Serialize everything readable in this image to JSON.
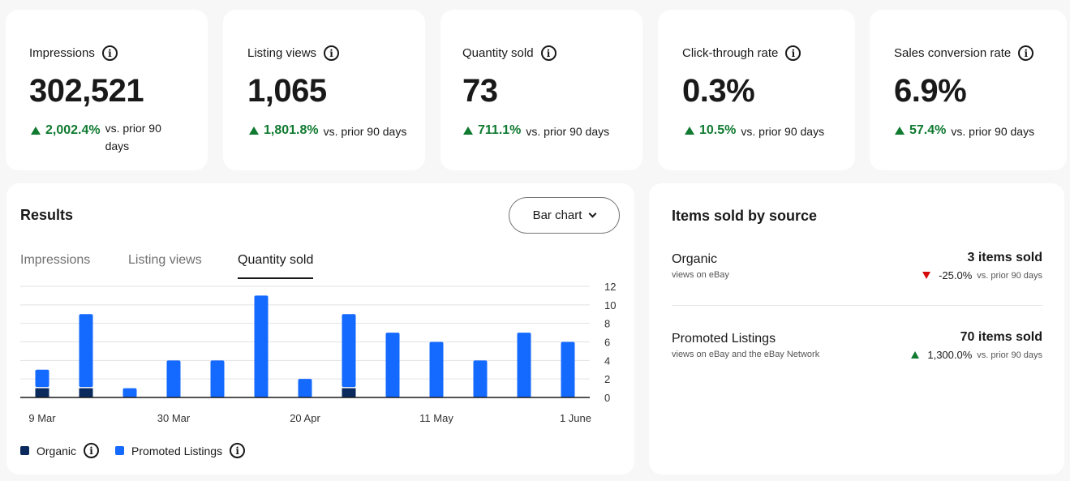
{
  "kpis": [
    {
      "label": "Impressions",
      "value": "302,521",
      "change": "2,002.4%",
      "vs": "vs. prior 90 days"
    },
    {
      "label": "Listing views",
      "value": "1,065",
      "change": "1,801.8%",
      "vs": "vs. prior 90 days"
    },
    {
      "label": "Quantity sold",
      "value": "73",
      "change": "711.1%",
      "vs": "vs. prior 90 days"
    },
    {
      "label": "Click-through rate",
      "value": "0.3%",
      "change": "10.5%",
      "vs": "vs. prior 90 days"
    },
    {
      "label": "Sales conversion rate",
      "value": "6.9%",
      "change": "57.4%",
      "vs": "vs. prior 90 days"
    }
  ],
  "results": {
    "title": "Results",
    "chart_type_button": "Bar chart",
    "tabs": [
      "Impressions",
      "Listing views",
      "Quantity sold"
    ],
    "active_tab": 2,
    "legend": [
      "Organic",
      "Promoted Listings"
    ]
  },
  "colors": {
    "organic": "#0a2a5e",
    "promoted": "#1469ff",
    "positive": "#0f7a30",
    "negative": "#d50b0b"
  },
  "chart_data": {
    "type": "bar",
    "stacked": true,
    "x_tick_labels": [
      "9 Mar",
      "30 Mar",
      "20 Apr",
      "11 May",
      "1 June"
    ],
    "series": [
      {
        "name": "Organic",
        "values": [
          1,
          1,
          0,
          0,
          0,
          0,
          0,
          1,
          0,
          0,
          0,
          0,
          0
        ]
      },
      {
        "name": "Promoted Listings",
        "values": [
          2,
          8,
          1,
          4,
          4,
          11,
          2,
          8,
          7,
          6,
          4,
          7,
          6
        ]
      }
    ],
    "y_ticks": [
      0,
      2,
      4,
      6,
      8,
      10,
      12
    ],
    "ylim": [
      0,
      12
    ],
    "grid": true,
    "y_axis_position": "right",
    "legend_position": "bottom-left"
  },
  "source": {
    "title": "Items sold by source",
    "rows": [
      {
        "name": "Organic",
        "desc": "views on eBay",
        "sold": "3 items sold",
        "change": "-25.0%",
        "direction": "down",
        "vs": "vs. prior 90 days"
      },
      {
        "name": "Promoted Listings",
        "desc": "views on eBay and the eBay Network",
        "sold": "70 items sold",
        "change": "1,300.0%",
        "direction": "up",
        "vs": "vs. prior 90 days"
      }
    ]
  }
}
